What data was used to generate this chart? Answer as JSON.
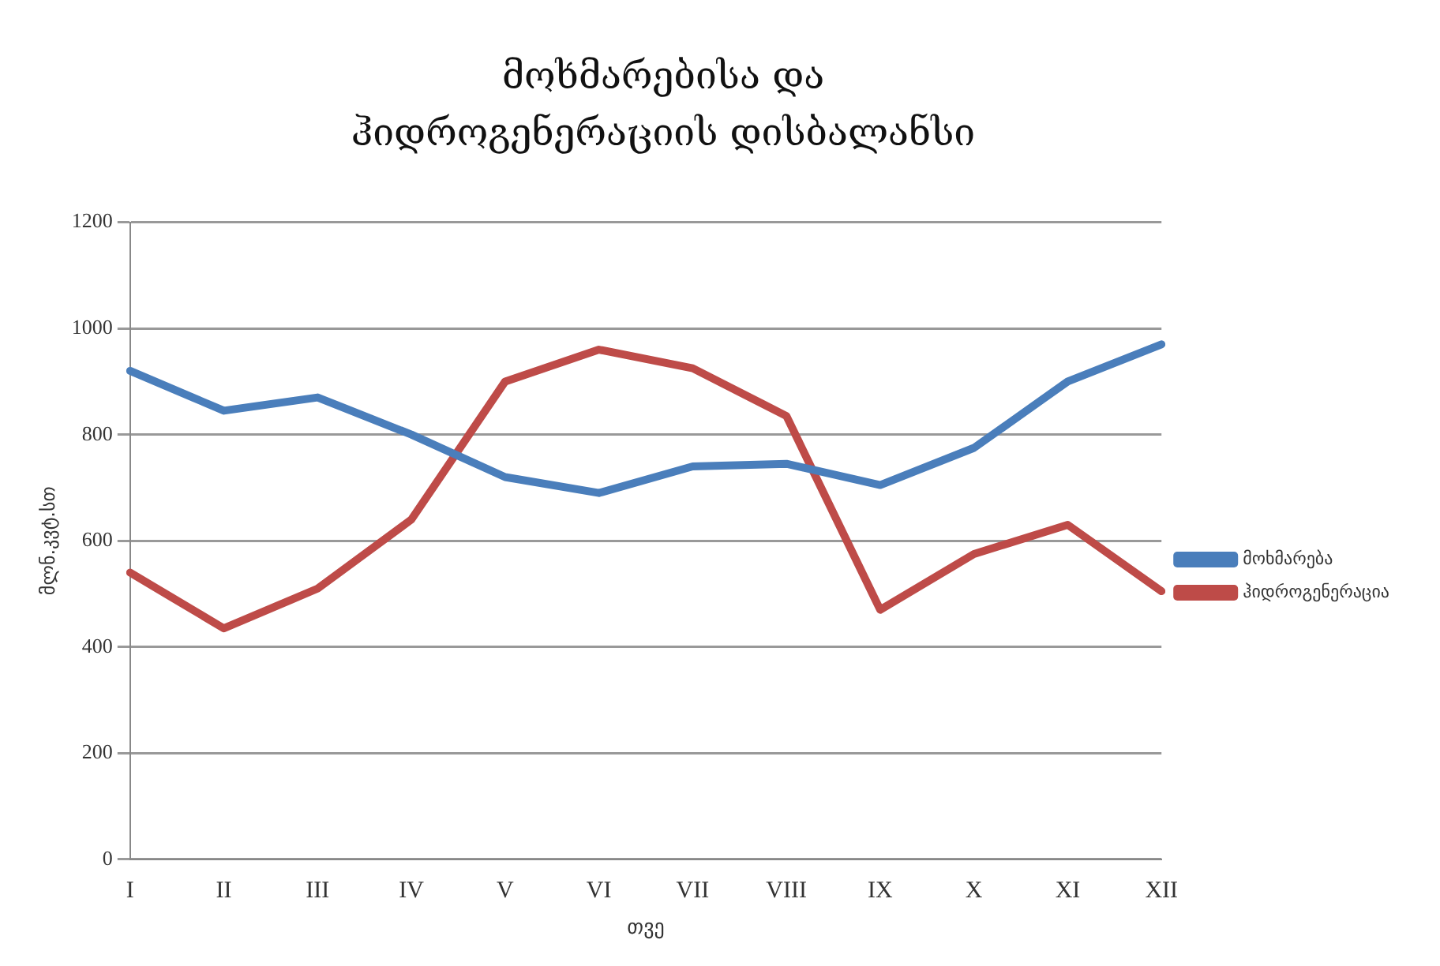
{
  "chart_data": {
    "type": "line",
    "title": "მოხმარებისა  და  ჰიდროგენერაციის დისბალანსი",
    "xlabel": "თვე",
    "ylabel": "მლნ.კვტ.სთ",
    "categories": [
      "I",
      "II",
      "III",
      "IV",
      "V",
      "VI",
      "VII",
      "VIII",
      "IX",
      "X",
      "XI",
      "XII"
    ],
    "series": [
      {
        "name": "მოხმარება",
        "color": "#4a7ebb",
        "values": [
          920,
          845,
          870,
          800,
          720,
          690,
          740,
          745,
          705,
          775,
          900,
          970
        ]
      },
      {
        "name": "ჰიდროგენერაცია",
        "color": "#be4b48",
        "values": [
          540,
          435,
          510,
          640,
          900,
          960,
          925,
          835,
          470,
          575,
          630,
          505
        ]
      }
    ],
    "ylim": [
      0,
      1200
    ],
    "yticks": [
      0,
      200,
      400,
      600,
      800,
      1000,
      1200
    ],
    "grid": "y",
    "legend": "right",
    "marker": "none",
    "line_style": "solid"
  }
}
